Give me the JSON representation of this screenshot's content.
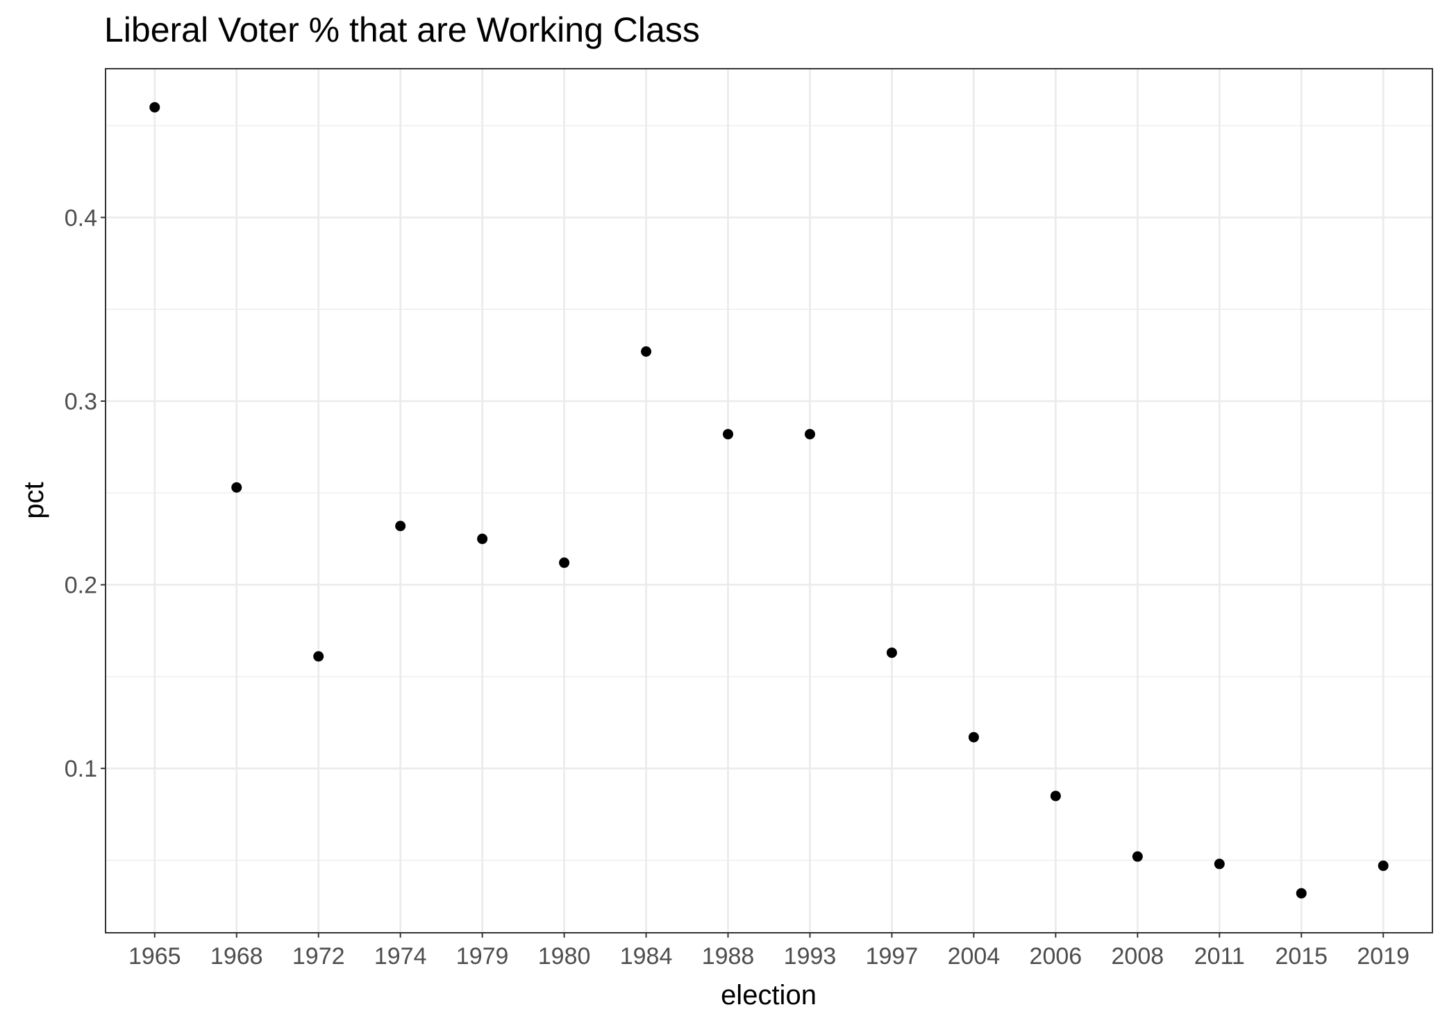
{
  "chart_data": {
    "type": "scatter",
    "title": "Liberal Voter % that are Working Class",
    "xlabel": "election",
    "ylabel": "pct",
    "categories": [
      "1965",
      "1968",
      "1972",
      "1974",
      "1979",
      "1980",
      "1984",
      "1988",
      "1993",
      "1997",
      "2004",
      "2006",
      "2008",
      "2011",
      "2015",
      "2019"
    ],
    "values": [
      0.46,
      0.253,
      0.161,
      0.232,
      0.225,
      0.212,
      0.327,
      0.282,
      0.282,
      0.163,
      0.117,
      0.085,
      0.052,
      0.048,
      0.032,
      0.047
    ],
    "yticks": [
      0.1,
      0.2,
      0.3,
      0.4
    ],
    "ytick_labels": [
      "0.1",
      "0.2",
      "0.3",
      "0.4"
    ],
    "ylim": [
      0.0105,
      0.481
    ],
    "grid": true,
    "point_color": "#000000",
    "panel_background": "#ffffff",
    "grid_color": "#ebebeb"
  }
}
